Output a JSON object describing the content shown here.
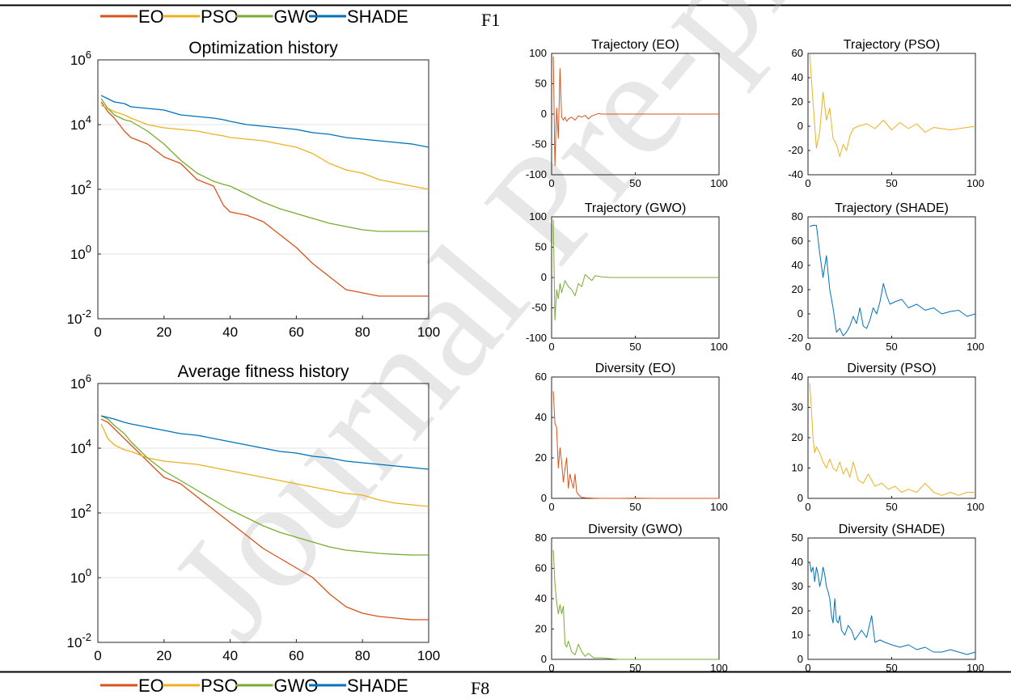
{
  "page": {
    "figure_label_top": "F1",
    "figure_label_bottom": "F8",
    "watermark": "Journal Pre-proof"
  },
  "legend": {
    "items": [
      {
        "name": "EO",
        "color": "#D95319"
      },
      {
        "name": "PSO",
        "color": "#EDB120"
      },
      {
        "name": "GWO",
        "color": "#77AC30"
      },
      {
        "name": "SHADE",
        "color": "#0072BD"
      }
    ]
  },
  "chart_data": [
    {
      "id": "opt-history",
      "type": "line",
      "title": "Optimization history",
      "yscale": "log",
      "xlim": [
        0,
        100
      ],
      "ylim_exp": [
        -2,
        6
      ],
      "xticks": [
        0,
        20,
        40,
        60,
        80,
        100
      ],
      "yticks_exp": [
        -2,
        0,
        2,
        4,
        6
      ],
      "grid": "horizontal",
      "x": [
        1,
        3,
        5,
        8,
        10,
        15,
        20,
        25,
        30,
        35,
        38,
        40,
        45,
        50,
        55,
        60,
        65,
        70,
        75,
        80,
        85,
        90,
        95,
        100
      ],
      "series": [
        {
          "name": "EO",
          "color": "#D95319",
          "log10_values": [
            4.7,
            4.4,
            4.2,
            3.8,
            3.6,
            3.4,
            3.0,
            2.8,
            2.3,
            2.1,
            1.5,
            1.3,
            1.2,
            1.0,
            0.6,
            0.2,
            -0.3,
            -0.7,
            -1.1,
            -1.2,
            -1.3,
            -1.3,
            -1.3,
            -1.3
          ]
        },
        {
          "name": "PSO",
          "color": "#EDB120",
          "log10_values": [
            4.6,
            4.5,
            4.4,
            4.3,
            4.2,
            4.0,
            3.9,
            3.85,
            3.8,
            3.7,
            3.65,
            3.6,
            3.55,
            3.5,
            3.4,
            3.3,
            3.1,
            2.8,
            2.6,
            2.5,
            2.3,
            2.2,
            2.1,
            2.0
          ]
        },
        {
          "name": "GWO",
          "color": "#77AC30",
          "log10_values": [
            4.8,
            4.5,
            4.3,
            4.15,
            4.1,
            3.8,
            3.4,
            2.9,
            2.5,
            2.25,
            2.15,
            2.1,
            1.85,
            1.6,
            1.4,
            1.25,
            1.1,
            0.95,
            0.85,
            0.75,
            0.7,
            0.7,
            0.7,
            0.7
          ]
        },
        {
          "name": "SHADE",
          "color": "#0072BD",
          "log10_values": [
            4.9,
            4.8,
            4.7,
            4.65,
            4.55,
            4.5,
            4.45,
            4.3,
            4.25,
            4.2,
            4.15,
            4.1,
            4.0,
            3.95,
            3.9,
            3.85,
            3.75,
            3.7,
            3.6,
            3.55,
            3.5,
            3.45,
            3.4,
            3.3
          ]
        }
      ]
    },
    {
      "id": "avg-fitness",
      "type": "line",
      "title": "Average fitness history",
      "yscale": "log",
      "xlim": [
        0,
        100
      ],
      "ylim_exp": [
        -2,
        6
      ],
      "xticks": [
        0,
        20,
        40,
        60,
        80,
        100
      ],
      "yticks_exp": [
        -2,
        0,
        2,
        4,
        6
      ],
      "grid": "horizontal",
      "x": [
        1,
        3,
        5,
        8,
        10,
        15,
        20,
        25,
        30,
        35,
        40,
        45,
        50,
        55,
        60,
        65,
        70,
        75,
        80,
        85,
        90,
        95,
        100
      ],
      "series": [
        {
          "name": "EO",
          "color": "#D95319",
          "log10_values": [
            4.9,
            4.8,
            4.6,
            4.3,
            4.1,
            3.6,
            3.1,
            2.9,
            2.5,
            2.1,
            1.7,
            1.3,
            0.9,
            0.6,
            0.3,
            0.0,
            -0.5,
            -0.9,
            -1.1,
            -1.2,
            -1.25,
            -1.3,
            -1.3
          ]
        },
        {
          "name": "PSO",
          "color": "#EDB120",
          "log10_values": [
            4.75,
            4.3,
            4.1,
            3.95,
            3.9,
            3.7,
            3.6,
            3.55,
            3.5,
            3.4,
            3.3,
            3.2,
            3.1,
            3.0,
            2.9,
            2.8,
            2.7,
            2.6,
            2.55,
            2.4,
            2.3,
            2.25,
            2.2
          ]
        },
        {
          "name": "GWO",
          "color": "#77AC30",
          "log10_values": [
            5.0,
            4.9,
            4.7,
            4.45,
            4.2,
            3.7,
            3.3,
            3.0,
            2.7,
            2.4,
            2.1,
            1.85,
            1.6,
            1.4,
            1.25,
            1.1,
            0.95,
            0.85,
            0.8,
            0.75,
            0.72,
            0.7,
            0.7
          ]
        },
        {
          "name": "SHADE",
          "color": "#0072BD",
          "log10_values": [
            5.0,
            4.95,
            4.9,
            4.8,
            4.75,
            4.65,
            4.55,
            4.45,
            4.4,
            4.3,
            4.2,
            4.1,
            4.0,
            3.9,
            3.85,
            3.75,
            3.7,
            3.6,
            3.55,
            3.5,
            3.45,
            3.4,
            3.35
          ]
        }
      ]
    },
    {
      "id": "traj-eo",
      "type": "line",
      "title": "Trajectory (EO)",
      "color": "#D95319",
      "xlim": [
        0,
        100
      ],
      "ylim": [
        -100,
        100
      ],
      "xticks": [
        0,
        50,
        100
      ],
      "yticks": [
        -100,
        -50,
        0,
        50,
        100
      ],
      "x": [
        1,
        2,
        3,
        4,
        5,
        6,
        7,
        8,
        9,
        10,
        12,
        14,
        16,
        18,
        20,
        22,
        24,
        26,
        28,
        30,
        35,
        40,
        50,
        60,
        70,
        80,
        90,
        100
      ],
      "y": [
        95,
        -85,
        10,
        -40,
        75,
        -5,
        -10,
        -5,
        -12,
        -8,
        -5,
        -10,
        -3,
        -5,
        -2,
        -8,
        -3,
        -1,
        1,
        0,
        0,
        0,
        0,
        0,
        0,
        0,
        0,
        0
      ]
    },
    {
      "id": "traj-pso",
      "type": "line",
      "title": "Trajectory (PSO)",
      "color": "#EDB120",
      "xlim": [
        0,
        100
      ],
      "ylim": [
        -40,
        60
      ],
      "xticks": [
        0,
        50,
        100
      ],
      "yticks": [
        -40,
        -20,
        0,
        20,
        40,
        60
      ],
      "x": [
        1,
        3,
        5,
        7,
        9,
        11,
        13,
        15,
        17,
        19,
        21,
        23,
        25,
        27,
        30,
        35,
        40,
        45,
        50,
        55,
        60,
        65,
        70,
        75,
        80,
        85,
        90,
        95,
        100
      ],
      "y": [
        60,
        20,
        -18,
        -5,
        28,
        5,
        15,
        -10,
        -15,
        -25,
        -15,
        -20,
        -8,
        -2,
        0,
        2,
        -2,
        5,
        -3,
        3,
        -2,
        2,
        -5,
        -1,
        -2,
        -3,
        -2,
        -1,
        0
      ]
    },
    {
      "id": "traj-gwo",
      "type": "line",
      "title": "Trajectory (GWO)",
      "color": "#77AC30",
      "xlim": [
        0,
        100
      ],
      "ylim": [
        -100,
        100
      ],
      "xticks": [
        0,
        50,
        100
      ],
      "yticks": [
        -100,
        -50,
        0,
        50,
        100
      ],
      "x": [
        1,
        2,
        3,
        4,
        5,
        6,
        8,
        10,
        12,
        14,
        16,
        18,
        20,
        22,
        24,
        26,
        28,
        30,
        35,
        40,
        50,
        60,
        70,
        80,
        90,
        100
      ],
      "y": [
        95,
        -70,
        -20,
        -35,
        -10,
        -25,
        -5,
        -15,
        -20,
        -30,
        -10,
        -15,
        5,
        0,
        -5,
        3,
        2,
        1,
        0,
        0,
        0,
        0,
        0,
        0,
        0,
        0
      ]
    },
    {
      "id": "traj-shade",
      "type": "line",
      "title": "Trajectory (SHADE)",
      "color": "#0072BD",
      "xlim": [
        0,
        100
      ],
      "ylim": [
        -20,
        80
      ],
      "xticks": [
        0,
        50,
        100
      ],
      "yticks": [
        -20,
        0,
        20,
        40,
        60,
        80
      ],
      "x": [
        1,
        3,
        5,
        7,
        9,
        11,
        13,
        15,
        17,
        19,
        21,
        23,
        25,
        27,
        29,
        31,
        33,
        35,
        37,
        39,
        41,
        43,
        45,
        47,
        49,
        52,
        56,
        60,
        65,
        70,
        75,
        80,
        85,
        90,
        95,
        100
      ],
      "y": [
        72,
        73,
        73,
        50,
        30,
        48,
        20,
        5,
        -15,
        -12,
        -18,
        -15,
        -10,
        -2,
        -8,
        5,
        -10,
        -12,
        -5,
        5,
        0,
        10,
        25,
        15,
        8,
        10,
        12,
        5,
        8,
        3,
        5,
        0,
        2,
        3,
        -2,
        0
      ]
    },
    {
      "id": "div-eo",
      "type": "line",
      "title": "Diversity (EO)",
      "color": "#D95319",
      "xlim": [
        0,
        100
      ],
      "ylim": [
        0,
        60
      ],
      "xticks": [
        0,
        50,
        100
      ],
      "yticks": [
        0,
        20,
        40,
        60
      ],
      "x": [
        1,
        2,
        3,
        4,
        5,
        6,
        7,
        8,
        9,
        10,
        11,
        12,
        13,
        14,
        15,
        16,
        17,
        18,
        20,
        22,
        25,
        30,
        40,
        50,
        60,
        70,
        80,
        90,
        100
      ],
      "y": [
        53,
        37,
        35,
        15,
        25,
        18,
        8,
        15,
        20,
        5,
        12,
        8,
        5,
        12,
        3,
        2,
        1,
        0.5,
        0.3,
        0.2,
        0.1,
        0,
        0,
        0.1,
        0,
        0,
        0,
        0,
        0
      ]
    },
    {
      "id": "div-pso",
      "type": "line",
      "title": "Diversity (PSO)",
      "color": "#EDB120",
      "xlim": [
        0,
        100
      ],
      "ylim": [
        0,
        40
      ],
      "xticks": [
        0,
        50,
        100
      ],
      "yticks": [
        0,
        10,
        20,
        30,
        40
      ],
      "x": [
        1,
        2,
        3,
        4,
        5,
        7,
        9,
        11,
        13,
        15,
        17,
        19,
        21,
        23,
        25,
        27,
        30,
        33,
        36,
        40,
        44,
        48,
        52,
        56,
        60,
        65,
        70,
        75,
        80,
        85,
        90,
        95,
        100
      ],
      "y": [
        38,
        30,
        20,
        15,
        17,
        15,
        12,
        10,
        13,
        10,
        9,
        12,
        8,
        10,
        7,
        12,
        6,
        5,
        8,
        4,
        5,
        3,
        4,
        2,
        3,
        2,
        5,
        2,
        1,
        2,
        1,
        2,
        2
      ]
    },
    {
      "id": "div-gwo",
      "type": "line",
      "title": "Diversity (GWO)",
      "color": "#77AC30",
      "xlim": [
        0,
        100
      ],
      "ylim": [
        0,
        80
      ],
      "xticks": [
        0,
        50,
        100
      ],
      "yticks": [
        0,
        20,
        40,
        60,
        80
      ],
      "x": [
        1,
        2,
        3,
        4,
        5,
        6,
        7,
        8,
        9,
        10,
        12,
        14,
        16,
        18,
        20,
        22,
        25,
        30,
        35,
        40,
        50,
        60,
        70,
        80,
        90,
        100
      ],
      "y": [
        72,
        50,
        38,
        30,
        36,
        30,
        35,
        10,
        8,
        12,
        5,
        3,
        10,
        5,
        2,
        4,
        1,
        1,
        0.5,
        0,
        0,
        0,
        0,
        0,
        0,
        0
      ]
    },
    {
      "id": "div-shade",
      "type": "line",
      "title": "Diversity (SHADE)",
      "color": "#0072BD",
      "xlim": [
        0,
        100
      ],
      "ylim": [
        0,
        50
      ],
      "xticks": [
        0,
        50,
        100
      ],
      "yticks": [
        0,
        10,
        20,
        30,
        40,
        50
      ],
      "x": [
        1,
        2,
        3,
        4,
        5,
        6,
        7,
        8,
        9,
        10,
        11,
        12,
        13,
        14,
        15,
        16,
        17,
        18,
        19,
        20,
        22,
        24,
        26,
        28,
        30,
        32,
        35,
        38,
        40,
        43,
        46,
        50,
        55,
        60,
        65,
        70,
        75,
        80,
        85,
        90,
        95,
        100
      ],
      "y": [
        40,
        36,
        38,
        32,
        38,
        35,
        30,
        33,
        38,
        35,
        30,
        28,
        25,
        18,
        15,
        25,
        16,
        15,
        18,
        12,
        10,
        14,
        12,
        8,
        10,
        12,
        9,
        18,
        7,
        8,
        7,
        6,
        5,
        6,
        4,
        5,
        3,
        3,
        4,
        3,
        2,
        3
      ]
    }
  ]
}
